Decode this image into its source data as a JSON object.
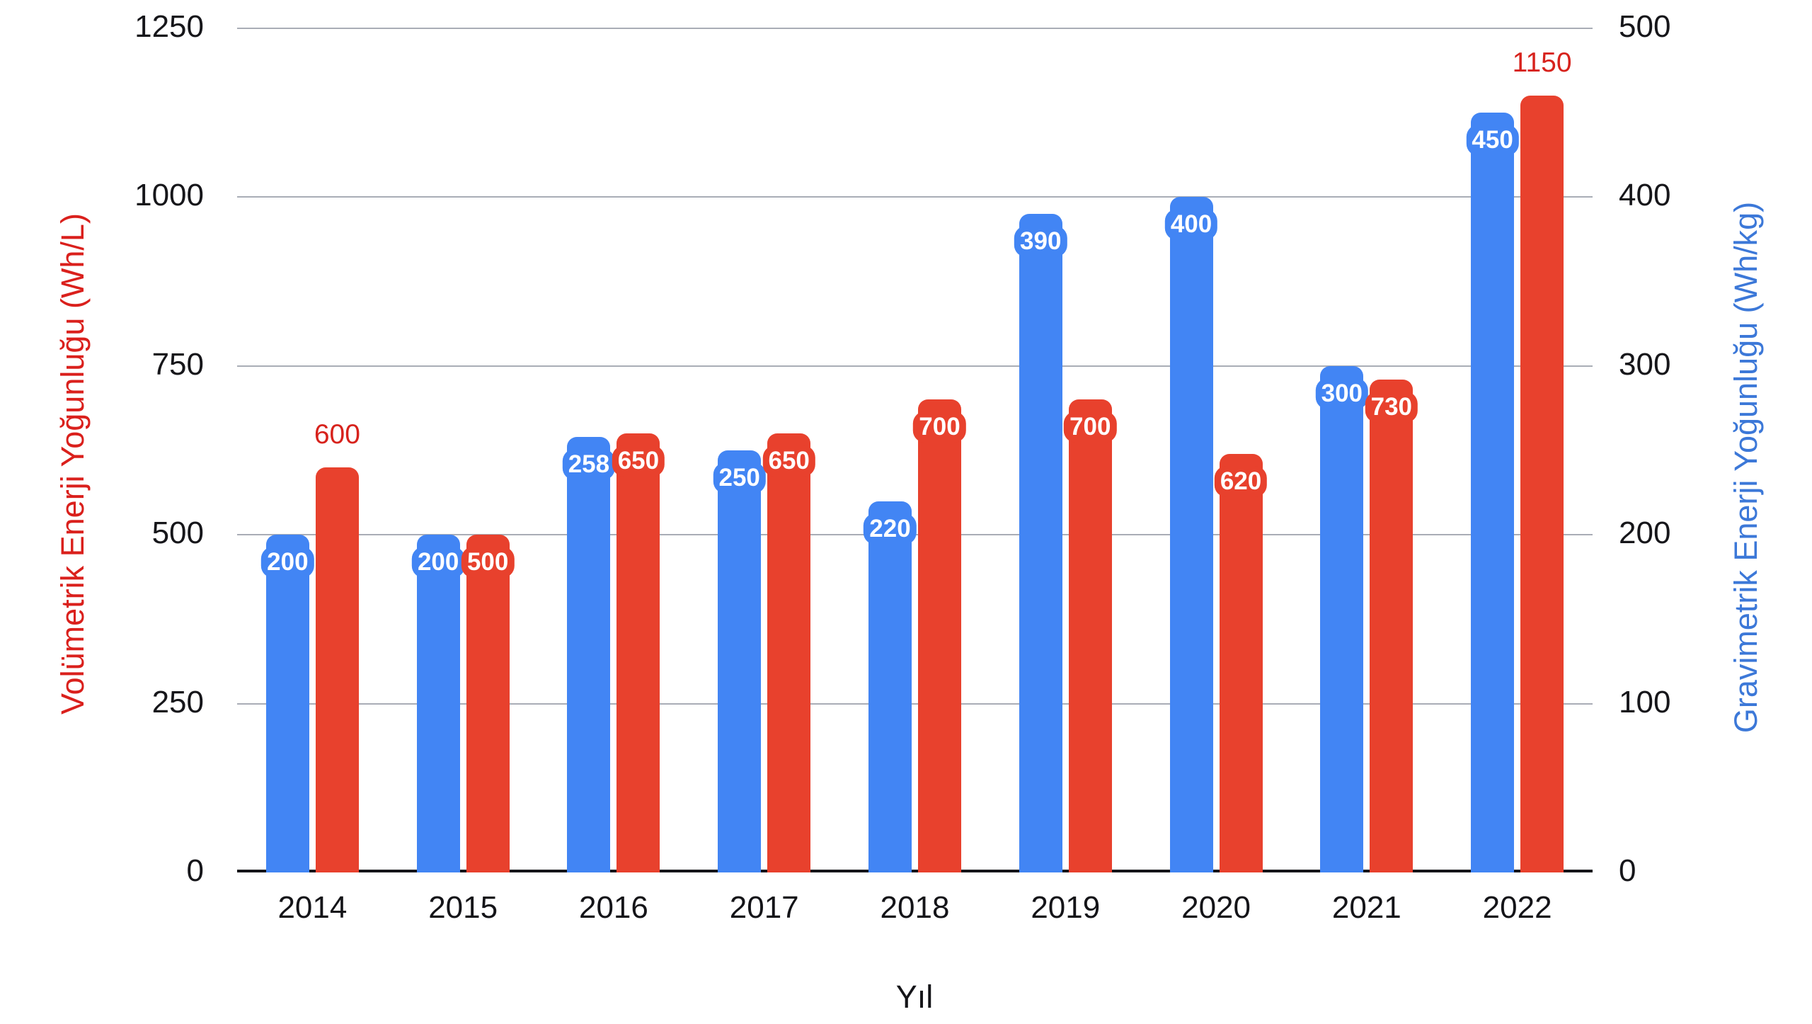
{
  "chart_data": {
    "type": "bar",
    "title": "",
    "xlabel": "Yıl",
    "categories": [
      "2014",
      "2015",
      "2016",
      "2017",
      "2018",
      "2019",
      "2020",
      "2021",
      "2022"
    ],
    "axes": {
      "left": {
        "title": "Volümetrik Enerji Yoğunluğu (Wh/L)",
        "range": [
          0,
          1250
        ],
        "ticks": [
          "0",
          "250",
          "500",
          "750",
          "1000",
          "1250"
        ],
        "tick_values": [
          0,
          250,
          500,
          750,
          1000,
          1250
        ],
        "title_color": "#da201c",
        "tick_color": "#16161a"
      },
      "right": {
        "title": "Gravimetrik Enerji Yoğunluğu (Wh/kg)",
        "range": [
          0,
          500
        ],
        "ticks": [
          "0",
          "100",
          "200",
          "300",
          "400",
          "500"
        ],
        "tick_values": [
          0,
          100,
          200,
          300,
          400,
          500
        ],
        "title_color": "#3c78d8",
        "tick_color": "#16161a"
      }
    },
    "series": [
      {
        "name": "Gravimetrik Enerji Yoğunluğu (Wh/kg)",
        "axis": "right",
        "color": "#4285f4",
        "values": [
          200,
          200,
          258,
          250,
          220,
          390,
          400,
          300,
          450
        ],
        "data_labels": [
          "200",
          "200",
          "258",
          "250",
          "220",
          "390",
          "400",
          "300",
          "450"
        ],
        "label_style": "pill",
        "label_text_color": "#ffffff"
      },
      {
        "name": "Volümetrik Enerji Yoğunluğu (Wh/L)",
        "axis": "left",
        "color": "#e8412d",
        "values": [
          600,
          500,
          650,
          650,
          700,
          700,
          620,
          730,
          1150
        ],
        "data_labels": [
          "600",
          "500",
          "650",
          "650",
          "700",
          "700",
          "620",
          "730",
          "1150"
        ],
        "label_style": "pill",
        "label_text_color": "#ffffff",
        "outside_label_indices": [
          0,
          8
        ],
        "outside_label_color": "#d7221c"
      }
    ],
    "grid": true,
    "gridline_color": "#a9adb6",
    "legend_position": "none"
  }
}
